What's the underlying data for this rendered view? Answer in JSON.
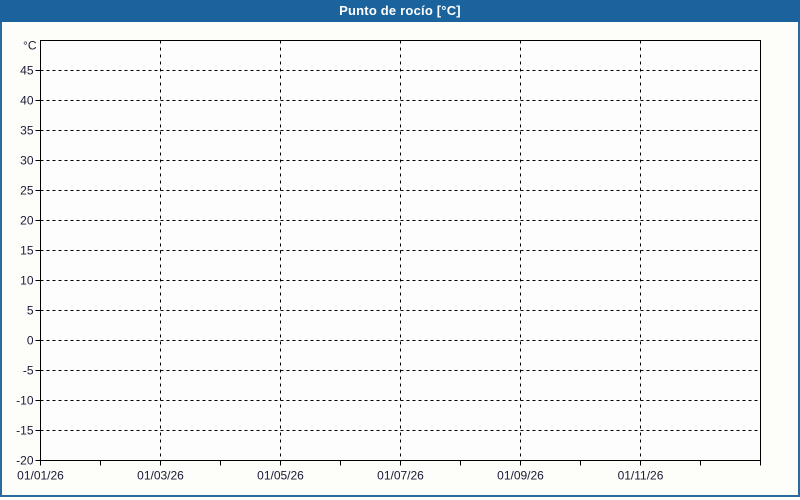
{
  "window": {
    "title": "Punto de rocío [°C]"
  },
  "colors": {
    "titlebar_bg": "#1b639c",
    "titlebar_text": "#ffffff",
    "panel_border": "#2b6a9e",
    "panel_bg": "#fdfdf9",
    "plot_bg": "#fdfdfd",
    "plot_border": "#000000",
    "grid": "#000000",
    "axis_text": "#1a1a38"
  },
  "chart_data": {
    "type": "line",
    "title": "Punto de rocío [°C]",
    "subtitle": "",
    "legend": null,
    "grid": "dashed",
    "y_axis": {
      "unit_label": "°C",
      "lim": [
        -20,
        50
      ],
      "tick_step": 5,
      "tick_labels": [
        "45",
        "40",
        "35",
        "30",
        "25",
        "20",
        "15",
        "10",
        "5",
        "0",
        "-5",
        "-10",
        "-15",
        "-20"
      ]
    },
    "x_axis": {
      "months_span": 12,
      "labels": [
        "01/01/26",
        "01/03/26",
        "01/05/26",
        "01/07/26",
        "01/09/26",
        "01/11/26"
      ],
      "label_month_positions": [
        0,
        2,
        4,
        6,
        8,
        10
      ],
      "grid_month_positions": [
        2,
        4,
        6,
        8,
        10
      ],
      "minor_tick_every_months": 1
    },
    "series": []
  }
}
